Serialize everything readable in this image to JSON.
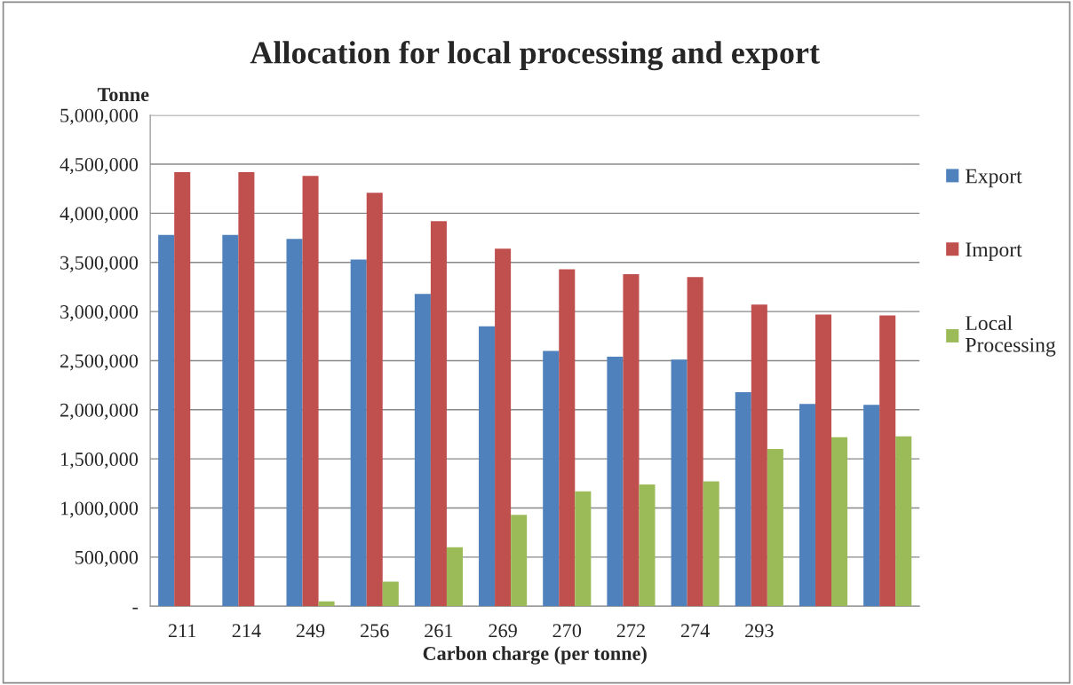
{
  "chart_data": {
    "type": "bar",
    "title": "Allocation for local processing and export",
    "xlabel": "Carbon charge (per tonne)",
    "ylabel": "Tonne",
    "categories": [
      "211",
      "214",
      "249",
      "256",
      "261",
      "269",
      "270",
      "272",
      "274",
      "293",
      null,
      null
    ],
    "series": [
      {
        "name": "Export",
        "color": "#4f81bd",
        "values": [
          3780000,
          3780000,
          3740000,
          3530000,
          3180000,
          2850000,
          2600000,
          2540000,
          2510000,
          2180000,
          2060000,
          2050000
        ]
      },
      {
        "name": "Import",
        "color": "#c0504d",
        "values": [
          4420000,
          4420000,
          4380000,
          4210000,
          3920000,
          3640000,
          3430000,
          3380000,
          3350000,
          3070000,
          2970000,
          2960000
        ]
      },
      {
        "name": "Local\nProcessing",
        "color": "#9bbb59",
        "values": [
          0,
          0,
          50000,
          250000,
          600000,
          930000,
          1170000,
          1240000,
          1270000,
          1600000,
          1720000,
          1730000
        ]
      }
    ],
    "ylim": [
      0,
      5000000
    ],
    "yticks": [
      {
        "value": 0,
        "label": "-"
      },
      {
        "value": 500000,
        "label": "500,000"
      },
      {
        "value": 1000000,
        "label": "1,000,000"
      },
      {
        "value": 1500000,
        "label": "1,500,000"
      },
      {
        "value": 2000000,
        "label": "2,000,000"
      },
      {
        "value": 2500000,
        "label": "2,500,000"
      },
      {
        "value": 3000000,
        "label": "3,000,000"
      },
      {
        "value": 3500000,
        "label": "3,500,000"
      },
      {
        "value": 4000000,
        "label": "4,000,000"
      },
      {
        "value": 4500000,
        "label": "4,500,000"
      },
      {
        "value": 5000000,
        "label": "5,000,000"
      }
    ],
    "grid": "y",
    "legend": "right"
  }
}
